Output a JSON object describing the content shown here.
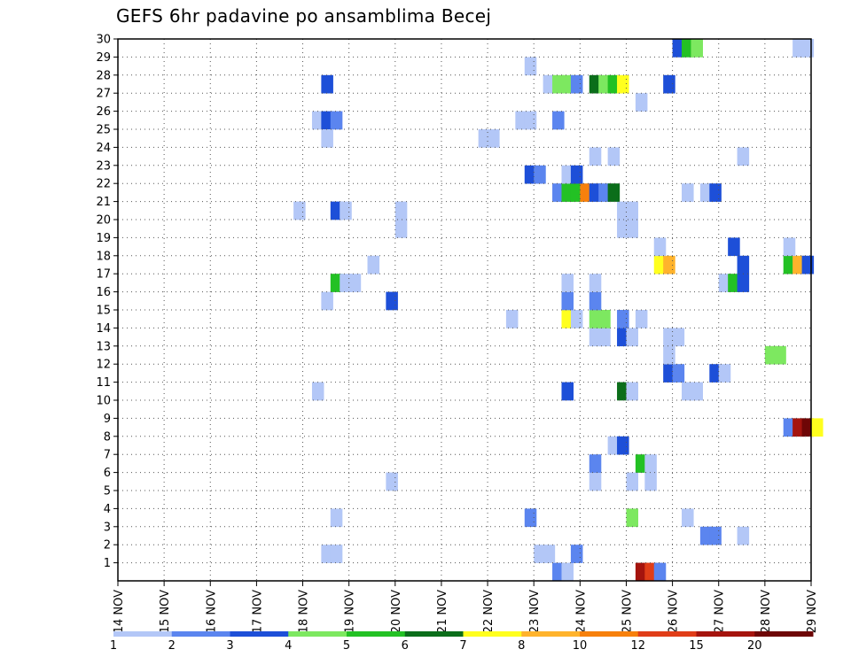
{
  "chart_data": {
    "type": "heatmap",
    "title": "GEFS 6hr padavine po ansamblima Becej",
    "x_tick_labels": [
      "14 NOV",
      "15 NOV",
      "16 NOV",
      "17 NOV",
      "18 NOV",
      "19 NOV",
      "20 NOV",
      "21 NOV",
      "22 NOV",
      "23 NOV",
      "24 NOV",
      "25 NOV",
      "26 NOV",
      "27 NOV",
      "28 NOV",
      "29 NOV"
    ],
    "x_range_days": [
      14,
      29
    ],
    "y_tick_labels": [
      "1",
      "2",
      "3",
      "4",
      "5",
      "6",
      "7",
      "8",
      "9",
      "10",
      "11",
      "12",
      "13",
      "14",
      "15",
      "16",
      "17",
      "18",
      "19",
      "20",
      "21",
      "22",
      "23",
      "24",
      "25",
      "26",
      "27",
      "28",
      "29",
      "30"
    ],
    "y_range": [
      0,
      30
    ],
    "grid": true,
    "colorbar": {
      "labels": [
        "1",
        "2",
        "3",
        "4",
        "5",
        "6",
        "7",
        "8",
        "10",
        "12",
        "15",
        "20"
      ],
      "colors": [
        "#b3c7f7",
        "#5b85ef",
        "#1d4fd8",
        "#7de860",
        "#23c124",
        "#0b6e1a",
        "#ffff1e",
        "#ffb32c",
        "#f7800c",
        "#e03d18",
        "#a5140e",
        "#6e0606"
      ]
    },
    "cells": [
      [
        25.2,
        0,
        11
      ],
      [
        25.4,
        0,
        10
      ],
      [
        25.6,
        0,
        2
      ],
      [
        23.4,
        0,
        2
      ],
      [
        23.6,
        0,
        1
      ],
      [
        18.4,
        1,
        1
      ],
      [
        18.6,
        1,
        1
      ],
      [
        23.0,
        1,
        1
      ],
      [
        23.2,
        1,
        1
      ],
      [
        23.8,
        1,
        2
      ],
      [
        26.6,
        2,
        2
      ],
      [
        26.8,
        2,
        2
      ],
      [
        27.4,
        2,
        1
      ],
      [
        18.6,
        3,
        1
      ],
      [
        22.8,
        3,
        2
      ],
      [
        25.0,
        3,
        4
      ],
      [
        26.2,
        3,
        1
      ],
      [
        19.8,
        5,
        1
      ],
      [
        24.2,
        5,
        1
      ],
      [
        25.0,
        5,
        1
      ],
      [
        25.4,
        5,
        1
      ],
      [
        24.2,
        6,
        2
      ],
      [
        25.2,
        6,
        5
      ],
      [
        25.4,
        6,
        1
      ],
      [
        24.6,
        7,
        1
      ],
      [
        24.8,
        7,
        3
      ],
      [
        28.4,
        8,
        2
      ],
      [
        28.6,
        8,
        11
      ],
      [
        28.8,
        8,
        12
      ],
      [
        29.0,
        8,
        7
      ],
      [
        18.2,
        10,
        1
      ],
      [
        23.6,
        10,
        3
      ],
      [
        24.8,
        10,
        6
      ],
      [
        25.0,
        10,
        1
      ],
      [
        26.2,
        10,
        1
      ],
      [
        26.4,
        10,
        1
      ],
      [
        25.8,
        11,
        3
      ],
      [
        26.0,
        11,
        2
      ],
      [
        26.8,
        11,
        3
      ],
      [
        27.0,
        11,
        1
      ],
      [
        25.8,
        12,
        1
      ],
      [
        28.0,
        12,
        4
      ],
      [
        28.2,
        12,
        4
      ],
      [
        24.2,
        13,
        1
      ],
      [
        24.4,
        13,
        1
      ],
      [
        24.8,
        13,
        3
      ],
      [
        25.0,
        13,
        1
      ],
      [
        25.8,
        13,
        1
      ],
      [
        26.0,
        13,
        1
      ],
      [
        22.4,
        14,
        1
      ],
      [
        23.6,
        14,
        7
      ],
      [
        23.8,
        14,
        1
      ],
      [
        24.2,
        14,
        4
      ],
      [
        24.4,
        14,
        4
      ],
      [
        24.8,
        14,
        2
      ],
      [
        25.2,
        14,
        1
      ],
      [
        18.4,
        15,
        1
      ],
      [
        19.8,
        15,
        3
      ],
      [
        23.6,
        15,
        2
      ],
      [
        24.2,
        15,
        2
      ],
      [
        18.6,
        16,
        5
      ],
      [
        18.8,
        16,
        1
      ],
      [
        19.0,
        16,
        1
      ],
      [
        23.6,
        16,
        1
      ],
      [
        24.2,
        16,
        1
      ],
      [
        27.0,
        16,
        1
      ],
      [
        27.2,
        16,
        5
      ],
      [
        27.4,
        16,
        3
      ],
      [
        19.4,
        17,
        1
      ],
      [
        25.6,
        17,
        7
      ],
      [
        25.8,
        17,
        8
      ],
      [
        27.4,
        17,
        3
      ],
      [
        28.4,
        17,
        5
      ],
      [
        28.6,
        17,
        8
      ],
      [
        28.8,
        17,
        3
      ],
      [
        25.6,
        18,
        1
      ],
      [
        27.2,
        18,
        3
      ],
      [
        28.4,
        18,
        1
      ],
      [
        20.0,
        19,
        1
      ],
      [
        24.8,
        19,
        1
      ],
      [
        25.0,
        19,
        1
      ],
      [
        17.8,
        20,
        1
      ],
      [
        18.6,
        20,
        3
      ],
      [
        18.8,
        20,
        1
      ],
      [
        20.0,
        20,
        1
      ],
      [
        24.8,
        20,
        1
      ],
      [
        25.0,
        20,
        1
      ],
      [
        23.4,
        21,
        2
      ],
      [
        23.6,
        21,
        5
      ],
      [
        23.8,
        21,
        5
      ],
      [
        24.0,
        21,
        9
      ],
      [
        24.2,
        21,
        3
      ],
      [
        24.4,
        21,
        2
      ],
      [
        24.6,
        21,
        6
      ],
      [
        26.2,
        21,
        1
      ],
      [
        26.6,
        21,
        1
      ],
      [
        26.8,
        21,
        3
      ],
      [
        22.8,
        22,
        3
      ],
      [
        23.0,
        22,
        2
      ],
      [
        23.6,
        22,
        1
      ],
      [
        23.8,
        22,
        3
      ],
      [
        24.2,
        23,
        1
      ],
      [
        24.6,
        23,
        1
      ],
      [
        27.4,
        23,
        1
      ],
      [
        21.8,
        24,
        1
      ],
      [
        22.0,
        24,
        1
      ],
      [
        18.2,
        25,
        1
      ],
      [
        18.4,
        25,
        3
      ],
      [
        18.6,
        25,
        2
      ],
      [
        22.6,
        25,
        1
      ],
      [
        22.8,
        25,
        1
      ],
      [
        23.4,
        25,
        2
      ],
      [
        18.4,
        24,
        1
      ],
      [
        25.2,
        26,
        1
      ],
      [
        18.4,
        27,
        3
      ],
      [
        23.2,
        27,
        1
      ],
      [
        23.4,
        27,
        4
      ],
      [
        23.6,
        27,
        4
      ],
      [
        23.8,
        27,
        2
      ],
      [
        24.2,
        27,
        6
      ],
      [
        24.4,
        27,
        4
      ],
      [
        24.6,
        27,
        5
      ],
      [
        24.8,
        27,
        7
      ],
      [
        25.8,
        27,
        3
      ],
      [
        22.8,
        28,
        1
      ],
      [
        26.0,
        29,
        3
      ],
      [
        26.2,
        29,
        5
      ],
      [
        26.4,
        29,
        4
      ],
      [
        28.6,
        29,
        1
      ],
      [
        28.8,
        29,
        1
      ]
    ]
  }
}
